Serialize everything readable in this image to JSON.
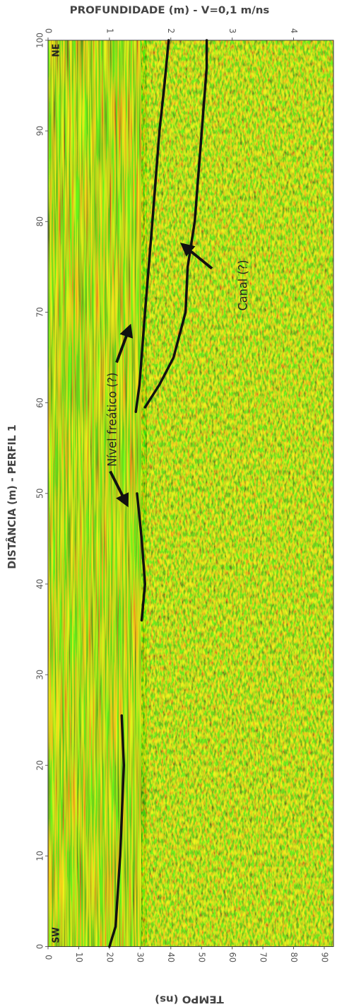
{
  "chart_data": {
    "type": "radargram",
    "title": "PROFUNDIDADE (m) - V=0,1 m/ns",
    "y_label": "DISTÂNCIA (m) - PERFIL 1",
    "x_label": "TEMPO (ns)",
    "xlim": [
      0,
      93
    ],
    "xticks": [
      0,
      10,
      20,
      30,
      40,
      50,
      60,
      70,
      80,
      90
    ],
    "x2lim": [
      0,
      4.65
    ],
    "x2ticks": [
      0,
      1,
      2,
      3,
      4
    ],
    "ylim": [
      0,
      100
    ],
    "yticks": [
      0,
      10,
      20,
      30,
      40,
      50,
      60,
      70,
      80,
      90,
      100
    ],
    "annotations": [
      "Nível freático (?)",
      "Canal (?)",
      "NE",
      "SW"
    ],
    "series": [
      {
        "color": "#111111",
        "x": [
          20,
          22,
          23.5,
          24.7,
          24
        ],
        "y": [
          0,
          2.2,
          10,
          20,
          25.5
        ]
      },
      {
        "color": "#111111",
        "x": [
          30.5,
          31.6,
          30.5,
          29
        ],
        "y": [
          36,
          40,
          45,
          50
        ]
      },
      {
        "color": "#111111",
        "x": [
          28.6,
          29.8,
          31.6,
          34,
          36.3,
          37.9,
          39.3
        ],
        "y": [
          59,
          62,
          70,
          80,
          90,
          95,
          100
        ]
      },
      {
        "color": "#111111",
        "x": [
          31.6,
          36.3,
          40.9,
          44.8,
          45.5,
          47.8,
          50.1,
          51.7,
          51.7
        ],
        "y": [
          59.5,
          62,
          65,
          70,
          75,
          80,
          90,
          97,
          100
        ]
      }
    ]
  }
}
